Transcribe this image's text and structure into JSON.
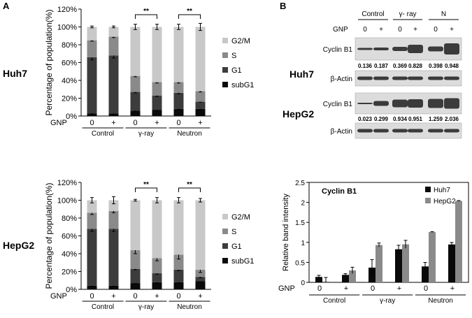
{
  "panels": {
    "a_label": "A",
    "b_label": "B"
  },
  "cell_lines": [
    "Huh7",
    "HepG2"
  ],
  "treatments": [
    "Control",
    "γ-ray",
    "Neutron"
  ],
  "gnp_label": "GNP",
  "gnp_levels": [
    "0",
    "+",
    "0",
    "+",
    "0",
    "+"
  ],
  "significance": "**",
  "stacked_legend": [
    "G2/M",
    "S",
    "G1",
    "subG1"
  ],
  "western": {
    "header_groups": [
      "Control",
      "γ- ray",
      "N"
    ],
    "gnp_label": "GNP",
    "gnp_levels": [
      "0",
      "+",
      "0",
      "+",
      "0",
      "+"
    ],
    "huh7": {
      "cell_label": "Huh7",
      "cyclin_label": "Cyclin B1",
      "actin_label": "β-Actin",
      "values": [
        "0.136",
        "0.187",
        "0.369",
        "0.828",
        "0.398",
        "0.948"
      ]
    },
    "hepg2": {
      "cell_label": "HepG2",
      "cyclin_label": "Cyclin B1",
      "actin_label": "β-Actin",
      "values": [
        "0.023",
        "0.299",
        "0.934",
        "0.951",
        "1.259",
        "2.036"
      ]
    }
  },
  "colors": {
    "g2m": "#c8c8c8",
    "s": "#8a8a8a",
    "g1": "#3c3c3c",
    "subg1": "#0a0a0a",
    "huh7": "#0a0a0a",
    "hepg2": "#8a8a8a",
    "band": "#1e1e1e",
    "blot_bg": "#dcdcdc"
  },
  "chart_data": [
    {
      "id": "huh7_cellcycle",
      "type": "bar",
      "stacked": true,
      "title": "",
      "ylabel": "Percentage of population(%)",
      "xlabel": "",
      "ylim": [
        0,
        120
      ],
      "yticks": [
        "0%",
        "20%",
        "40%",
        "60%",
        "80%",
        "100%",
        "120%"
      ],
      "categories": [
        "Control 0",
        "Control +",
        "γ-ray 0",
        "γ-ray +",
        "Neutron 0",
        "Neutron +"
      ],
      "series": [
        {
          "name": "subG1",
          "values": [
            3,
            3,
            6,
            7,
            8,
            8
          ]
        },
        {
          "name": "G1",
          "values": [
            63,
            65,
            21,
            16,
            18,
            8
          ]
        },
        {
          "name": "S",
          "values": [
            19,
            21,
            18,
            15,
            12,
            12
          ]
        },
        {
          "name": "G2/M",
          "values": [
            15,
            11,
            55,
            62,
            62,
            72
          ]
        }
      ],
      "error_bars_cumulative": [
        [
          0.5,
          1,
          0.5,
          1,
          0.5,
          0.5
        ],
        [
          3,
          3,
          1,
          1,
          1,
          0.5
        ],
        [
          1,
          1,
          1,
          1,
          1,
          1
        ],
        [
          1,
          1,
          3,
          3,
          3,
          4
        ]
      ],
      "significance_pairs": [
        [
          2,
          3
        ],
        [
          4,
          5
        ]
      ]
    },
    {
      "id": "hepg2_cellcycle",
      "type": "bar",
      "stacked": true,
      "title": "",
      "ylabel": "Percentage of population(%)",
      "xlabel": "",
      "ylim": [
        0,
        120
      ],
      "yticks": [
        "0%",
        "20%",
        "40%",
        "60%",
        "80%",
        "100%",
        "120%"
      ],
      "categories": [
        "Control 0",
        "Control +",
        "γ-ray 0",
        "γ-ray +",
        "Neutron 0",
        "Neutron +"
      ],
      "series": [
        {
          "name": "subG1",
          "values": [
            4,
            4,
            7,
            8,
            8,
            9
          ]
        },
        {
          "name": "G1",
          "values": [
            64,
            64,
            16,
            10,
            14,
            5
          ]
        },
        {
          "name": "S",
          "values": [
            18,
            20,
            21,
            17,
            17,
            8
          ]
        },
        {
          "name": "G2/M",
          "values": [
            14,
            12,
            56,
            65,
            61,
            78
          ]
        }
      ],
      "error_bars_cumulative": [
        [
          0.5,
          0.5,
          0.5,
          1,
          0.5,
          1
        ],
        [
          3,
          3,
          1,
          1,
          1,
          1
        ],
        [
          2,
          2,
          4,
          3,
          5,
          3
        ],
        [
          3,
          4,
          1,
          3,
          3,
          2
        ]
      ],
      "significance_pairs": [
        [
          2,
          3
        ],
        [
          4,
          5
        ]
      ]
    },
    {
      "id": "cyclin_b1_intensity",
      "type": "bar",
      "title": "Cyclin B1",
      "ylabel": "Relative band intensity",
      "xlabel": "",
      "ylim": [
        0,
        2.5
      ],
      "yticks": [
        "0",
        "0.5",
        "1",
        "1.5",
        "2",
        "2.5"
      ],
      "categories": [
        "Control 0",
        "Control +",
        "γ-ray 0",
        "γ-ray +",
        "Neutron 0",
        "Neutron +"
      ],
      "series": [
        {
          "name": "Huh7",
          "values": [
            0.136,
            0.187,
            0.369,
            0.828,
            0.398,
            0.948
          ],
          "errors": [
            0.04,
            0.03,
            0.2,
            0.1,
            0.1,
            0.05
          ]
        },
        {
          "name": "HepG2",
          "values": [
            0.023,
            0.299,
            0.934,
            0.951,
            1.259,
            2.036
          ],
          "errors": [
            0.1,
            0.08,
            0.05,
            0.1,
            0.01,
            0.01
          ]
        }
      ],
      "legend": "top-right"
    }
  ]
}
